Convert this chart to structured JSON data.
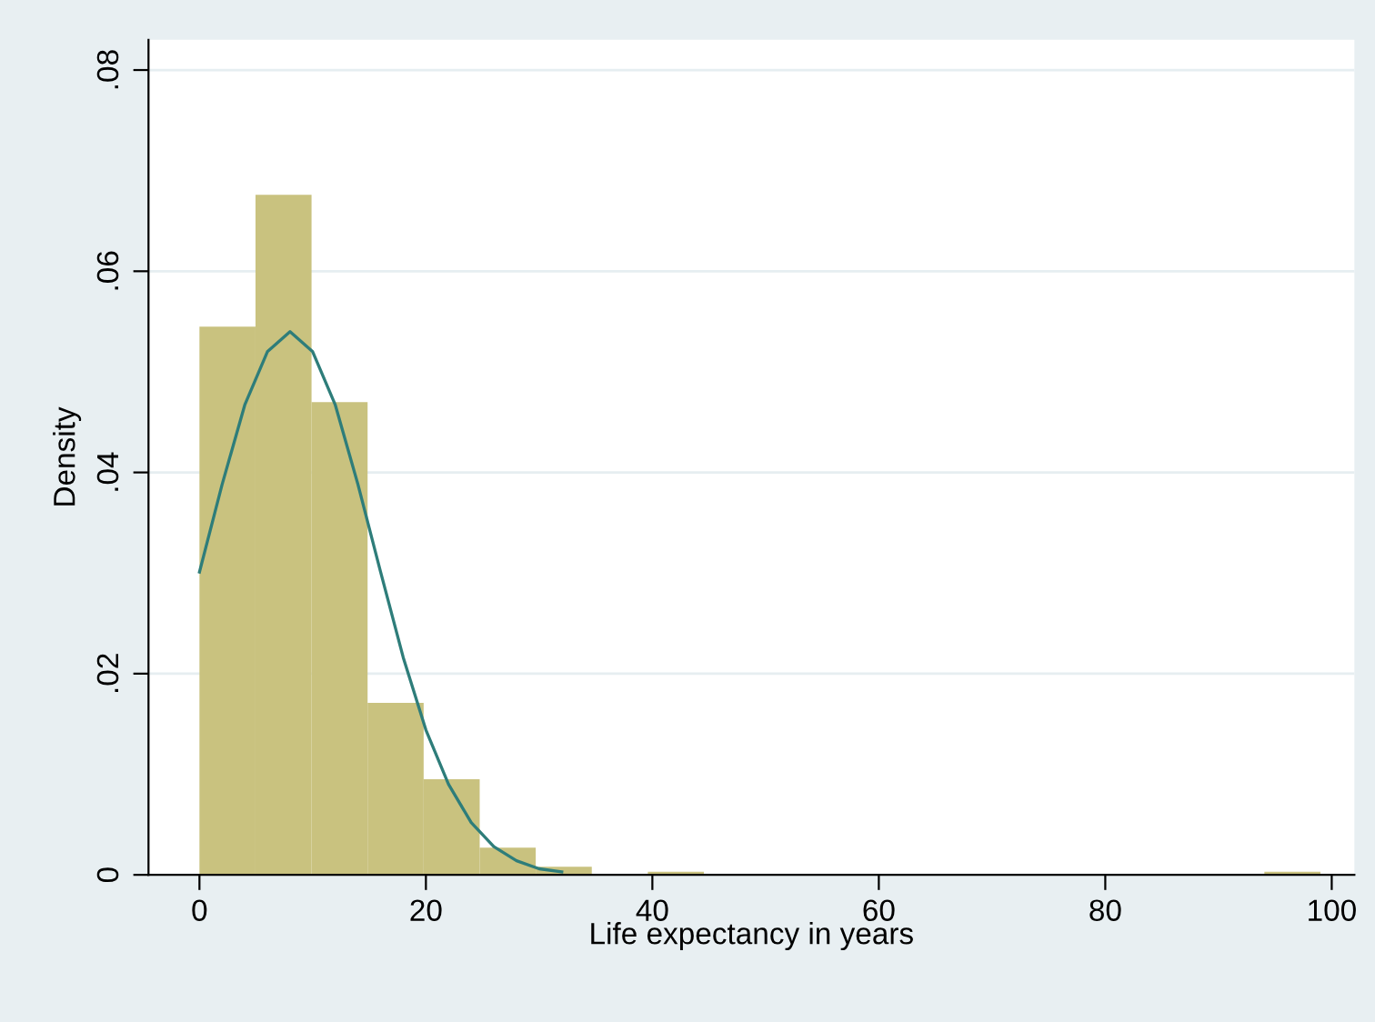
{
  "chart_data": {
    "type": "histogram",
    "xlabel": "Life expectancy in years",
    "ylabel": "Density",
    "bins": [
      0,
      4.95,
      9.9,
      14.85,
      19.8,
      24.75,
      29.7,
      34.65,
      39.6,
      44.55,
      49.5,
      54.45,
      59.4,
      64.35,
      69.3,
      74.25,
      79.2,
      84.15,
      89.1,
      94.05,
      99
    ],
    "values": [
      0.0545,
      0.0676,
      0.047,
      0.0171,
      0.0095,
      0.0027,
      0.0008,
      0,
      0.0003,
      0,
      0,
      0,
      0,
      0,
      0,
      0,
      0,
      0,
      0,
      0.0003
    ],
    "color": "#c9c27f",
    "series": [
      {
        "type": "line",
        "color": "#2e7d7a",
        "x": [
          0,
          2,
          4,
          6,
          8,
          10,
          12,
          14,
          16,
          18,
          20,
          22,
          24,
          26,
          28,
          30,
          32
        ],
        "values": [
          0.0301,
          0.0388,
          0.0467,
          0.052,
          0.054,
          0.052,
          0.0467,
          0.0388,
          0.0301,
          0.0216,
          0.0144,
          0.009,
          0.0052,
          0.0028,
          0.0014,
          0.0006,
          0.0003
        ]
      }
    ],
    "xlim": [
      -4.5,
      102
    ],
    "ylim": [
      0,
      0.083
    ],
    "xticks": [
      0,
      20,
      40,
      60,
      80,
      100
    ],
    "yticks": [
      0,
      {
        "value": 0.02,
        "label": ".02"
      },
      {
        "value": 0.04,
        "label": ".04"
      },
      {
        "value": 0.06,
        "label": ".06"
      },
      {
        "value": 0.08,
        "label": ".08"
      }
    ],
    "grid": "y"
  }
}
